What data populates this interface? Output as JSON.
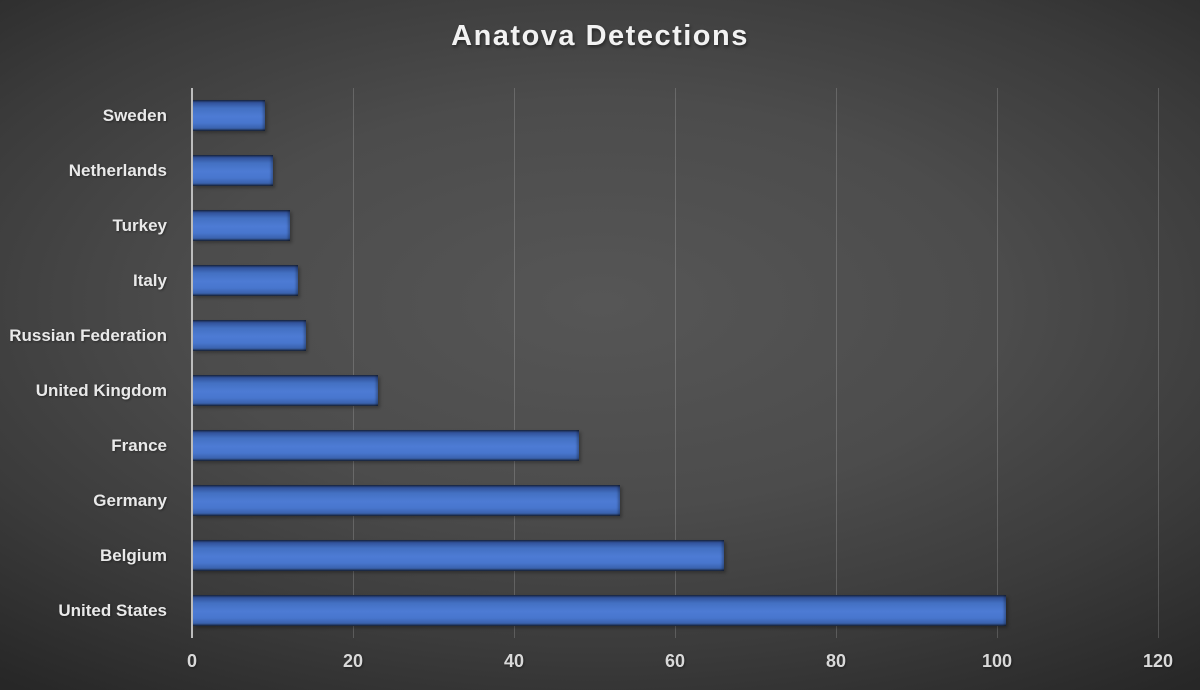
{
  "title": "Anatova Detections",
  "colors": {
    "bar_blue": "#4472C4",
    "background_center": "#505050",
    "background_edge": "#272727",
    "gridline": "#6e6e6e",
    "axis_line": "#bdbdbd",
    "title_text": "#f2f2f2",
    "label_text": "#e9e9e9",
    "tick_text": "#d9d9d9"
  },
  "chart_data": {
    "type": "bar",
    "orientation": "horizontal",
    "title": "Anatova Detections",
    "xlabel": "",
    "ylabel": "",
    "categories": [
      "Sweden",
      "Netherlands",
      "Turkey",
      "Italy",
      "Russian Federation",
      "United Kingdom",
      "France",
      "Germany",
      "Belgium",
      "United States"
    ],
    "values": [
      9,
      10,
      12,
      13,
      14,
      23,
      48,
      53,
      66,
      101
    ],
    "xlim": [
      0,
      120
    ],
    "xticks": [
      0,
      20,
      40,
      60,
      80,
      100,
      120
    ],
    "grid": true,
    "legend": false
  }
}
